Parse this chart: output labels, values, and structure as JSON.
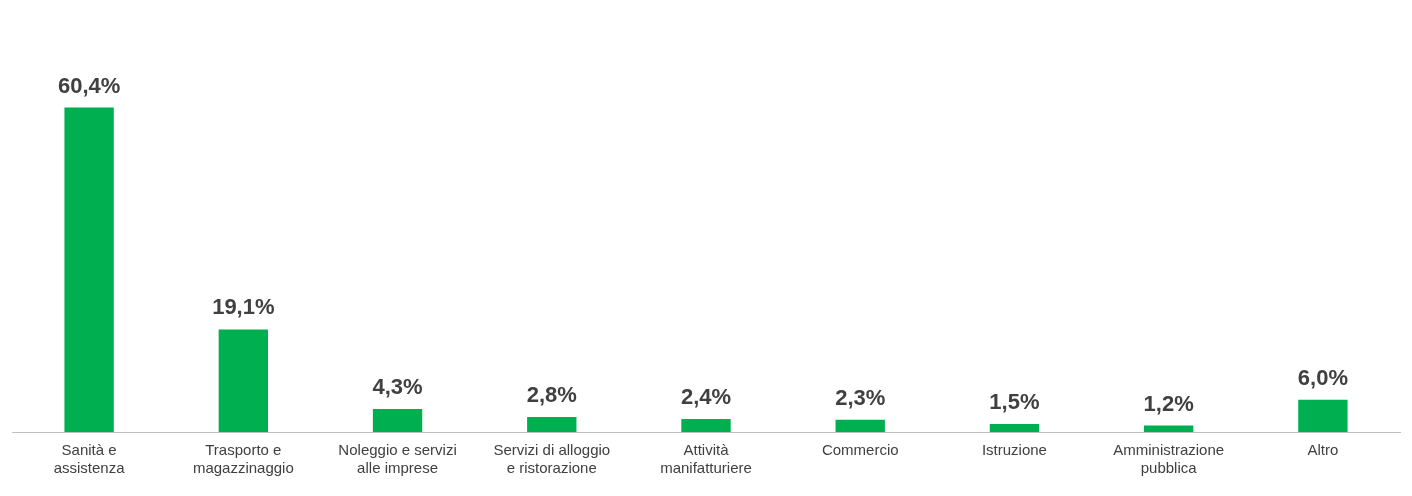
{
  "chart_data": {
    "type": "bar",
    "categories": [
      "Sanità e assistenza",
      "Trasporto e magazzinaggio",
      "Noleggio e servizi alle imprese",
      "Servizi di alloggio e ristorazione",
      "Attività manifatturiere",
      "Commercio",
      "Istruzione",
      "Amministrazione pubblica",
      "Altro"
    ],
    "values": [
      60.4,
      19.1,
      4.3,
      2.8,
      2.4,
      2.3,
      1.5,
      1.2,
      6.0
    ],
    "value_labels": [
      "60,4%",
      "19,1%",
      "4,3%",
      "2,8%",
      "2,4%",
      "2,3%",
      "1,5%",
      "1,2%",
      "6,0%"
    ],
    "color": "#00b050",
    "grid": false,
    "legend": false
  }
}
